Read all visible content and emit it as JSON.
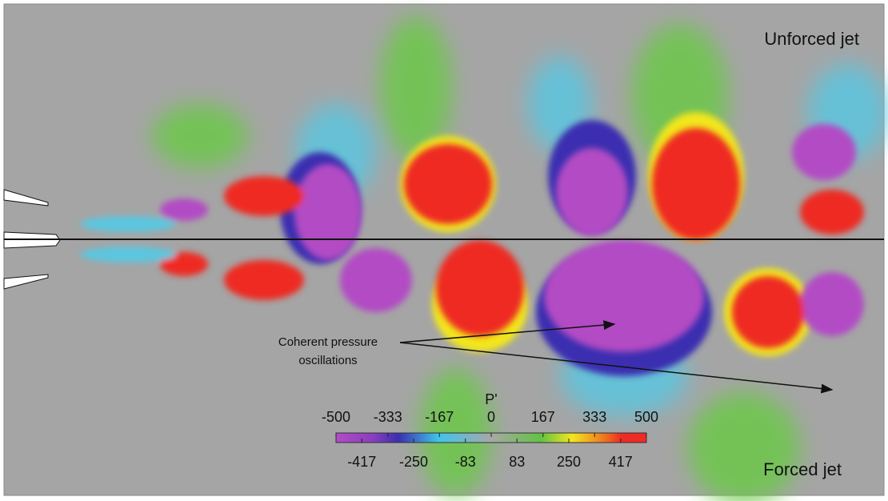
{
  "labels": {
    "top": "Unforced jet",
    "bottom": "Forced jet",
    "annotation": [
      "Coherent pressure",
      "oscillations"
    ]
  },
  "colorbar": {
    "title": "P'",
    "lim": [
      -500,
      500
    ],
    "top_ticks": [
      -500,
      -333,
      -167,
      0,
      167,
      333,
      500
    ],
    "bottom_ticks": [
      -417,
      -250,
      -83,
      83,
      250,
      417
    ]
  }
}
